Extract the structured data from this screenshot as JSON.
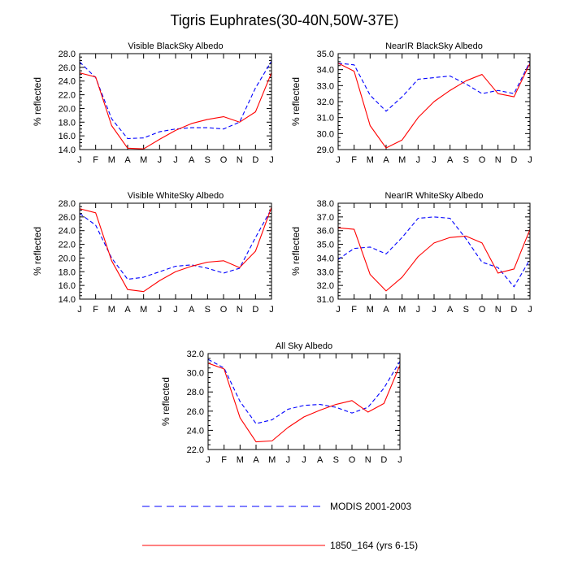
{
  "title": "Tigris Euphrates(30-40N,50W-37E)",
  "legend": {
    "entries": [
      {
        "label": "MODIS 2001-2003",
        "color": "#0000ff",
        "dash": true
      },
      {
        "label": "1850_164 (yrs 6-15)",
        "color": "#ff0000",
        "dash": false
      }
    ]
  },
  "chart_data": [
    {
      "type": "line",
      "title": "Visible BlackSky Albedo",
      "ylabel": "% reflected",
      "categories": [
        "J",
        "F",
        "M",
        "A",
        "M",
        "J",
        "J",
        "A",
        "S",
        "O",
        "N",
        "D",
        "J"
      ],
      "ylim": [
        14.0,
        28.0
      ],
      "yticks": [
        "14.0",
        "16.0",
        "18.0",
        "20.0",
        "22.0",
        "24.0",
        "26.0",
        "28.0"
      ],
      "series": [
        {
          "name": "MODIS 2001-2003",
          "color": "#0000ff",
          "dash": true,
          "values": [
            26.8,
            24.5,
            18.5,
            15.6,
            15.7,
            16.6,
            17.0,
            17.2,
            17.2,
            17.0,
            18.0,
            23.0,
            26.9
          ]
        },
        {
          "name": "1850_164 (yrs 6-15)",
          "color": "#ff0000",
          "dash": false,
          "values": [
            25.2,
            24.6,
            17.5,
            14.2,
            14.1,
            15.5,
            16.8,
            17.8,
            18.4,
            18.8,
            18.0,
            19.5,
            25.2
          ]
        }
      ]
    },
    {
      "type": "line",
      "title": "NearIR BlackSky Albedo",
      "ylabel": "% reflected",
      "categories": [
        "J",
        "F",
        "M",
        "A",
        "M",
        "J",
        "J",
        "A",
        "S",
        "O",
        "N",
        "D",
        "J"
      ],
      "ylim": [
        29.0,
        35.0
      ],
      "yticks": [
        "29.0",
        "30.0",
        "31.0",
        "32.0",
        "33.0",
        "34.0",
        "35.0"
      ],
      "series": [
        {
          "name": "MODIS 2001-2003",
          "color": "#0000ff",
          "dash": true,
          "values": [
            34.4,
            34.3,
            32.4,
            31.4,
            32.3,
            33.4,
            33.5,
            33.6,
            33.1,
            32.5,
            32.7,
            32.5,
            34.5
          ]
        },
        {
          "name": "1850_164 (yrs 6-15)",
          "color": "#ff0000",
          "dash": false,
          "values": [
            34.4,
            33.9,
            30.5,
            29.1,
            29.6,
            31.0,
            32.0,
            32.7,
            33.3,
            33.7,
            32.5,
            32.3,
            34.4
          ]
        }
      ]
    },
    {
      "type": "line",
      "title": "Visible WhiteSky Albedo",
      "ylabel": "% reflected",
      "categories": [
        "J",
        "F",
        "M",
        "A",
        "M",
        "J",
        "J",
        "A",
        "S",
        "O",
        "N",
        "D",
        "J"
      ],
      "ylim": [
        14.0,
        28.0
      ],
      "yticks": [
        "14.0",
        "16.0",
        "18.0",
        "20.0",
        "22.0",
        "24.0",
        "26.0",
        "28.0"
      ],
      "series": [
        {
          "name": "MODIS 2001-2003",
          "color": "#0000ff",
          "dash": true,
          "values": [
            26.5,
            24.8,
            20.0,
            16.9,
            17.2,
            18.0,
            18.8,
            19.0,
            18.5,
            17.8,
            18.5,
            23.0,
            27.2
          ]
        },
        {
          "name": "1850_164 (yrs 6-15)",
          "color": "#ff0000",
          "dash": false,
          "values": [
            27.2,
            26.6,
            19.6,
            15.4,
            15.1,
            16.7,
            18.0,
            18.8,
            19.4,
            19.6,
            18.6,
            21.0,
            27.4
          ]
        }
      ]
    },
    {
      "type": "line",
      "title": "NearIR WhiteSky Albedo",
      "ylabel": "% reflected",
      "categories": [
        "J",
        "F",
        "M",
        "A",
        "M",
        "J",
        "J",
        "A",
        "S",
        "O",
        "N",
        "D",
        "J"
      ],
      "ylim": [
        31.0,
        38.0
      ],
      "yticks": [
        "31.0",
        "32.0",
        "33.0",
        "34.0",
        "35.0",
        "36.0",
        "37.0",
        "38.0"
      ],
      "series": [
        {
          "name": "MODIS 2001-2003",
          "color": "#0000ff",
          "dash": true,
          "values": [
            33.9,
            34.7,
            34.8,
            34.3,
            35.5,
            36.9,
            37.0,
            36.9,
            35.4,
            33.7,
            33.3,
            31.9,
            33.9
          ]
        },
        {
          "name": "1850_164 (yrs 6-15)",
          "color": "#ff0000",
          "dash": false,
          "values": [
            36.2,
            36.1,
            32.8,
            31.6,
            32.6,
            34.1,
            35.1,
            35.5,
            35.6,
            35.1,
            32.9,
            33.2,
            36.1
          ]
        }
      ]
    },
    {
      "type": "line",
      "title": "All Sky Albedo",
      "ylabel": "% reflected",
      "categories": [
        "J",
        "F",
        "M",
        "A",
        "M",
        "J",
        "J",
        "A",
        "S",
        "O",
        "N",
        "D",
        "J"
      ],
      "ylim": [
        22.0,
        32.0
      ],
      "yticks": [
        "22.0",
        "24.0",
        "26.0",
        "28.0",
        "30.0",
        "32.0"
      ],
      "series": [
        {
          "name": "MODIS 2001-2003",
          "color": "#0000ff",
          "dash": true,
          "values": [
            31.4,
            30.5,
            27.0,
            24.7,
            25.1,
            26.2,
            26.6,
            26.7,
            26.4,
            25.8,
            26.4,
            28.4,
            31.2
          ]
        },
        {
          "name": "1850_164 (yrs 6-15)",
          "color": "#ff0000",
          "dash": false,
          "values": [
            31.0,
            30.4,
            25.3,
            22.8,
            22.9,
            24.3,
            25.4,
            26.1,
            26.7,
            27.1,
            25.9,
            26.8,
            30.8
          ]
        }
      ]
    }
  ]
}
